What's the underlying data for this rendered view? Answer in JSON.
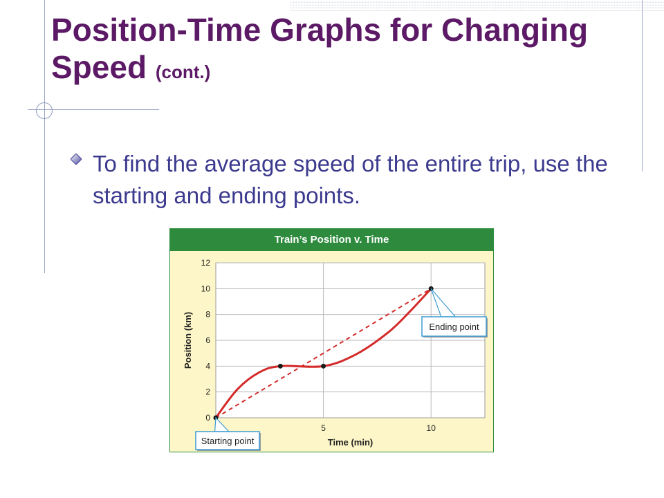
{
  "slide": {
    "title_main": "Position-Time Graphs for Changing Speed",
    "title_suffix": "(cont.)",
    "bullet": "To find the average speed of the entire trip, use the starting and ending points."
  },
  "colors": {
    "title": "#5c1a66",
    "bullet_text": "#3b3a8e",
    "chart_header_bg": "#2e8b3e",
    "chart_bg": "#fdf6c8",
    "curve": "#d42a2a",
    "callout_border": "#3a9bd1"
  },
  "chart_data": {
    "type": "line",
    "title": "Train’s Position v. Time",
    "xlabel": "Time (min)",
    "ylabel": "Position (km)",
    "xlim": [
      0,
      12.5
    ],
    "ylim": [
      0,
      12
    ],
    "x_ticks": [
      5,
      10
    ],
    "y_ticks": [
      0,
      2,
      4,
      6,
      8,
      10,
      12
    ],
    "grid": true,
    "series": [
      {
        "style": "solid",
        "x": [
          0,
          1,
          2,
          3,
          5,
          6.5,
          8,
          9,
          10
        ],
        "y": [
          0,
          2.2,
          3.5,
          4,
          4,
          4.9,
          6.6,
          8.2,
          10
        ]
      },
      {
        "style": "dashed",
        "x": [
          0,
          10
        ],
        "y": [
          0,
          10
        ]
      }
    ],
    "points": [
      {
        "x": 0,
        "y": 0
      },
      {
        "x": 3,
        "y": 4
      },
      {
        "x": 5,
        "y": 4
      },
      {
        "x": 10,
        "y": 10
      }
    ],
    "annotations": [
      {
        "text": "Starting point",
        "x": 0,
        "y": 0
      },
      {
        "text": "Ending point",
        "x": 10,
        "y": 10
      }
    ]
  }
}
